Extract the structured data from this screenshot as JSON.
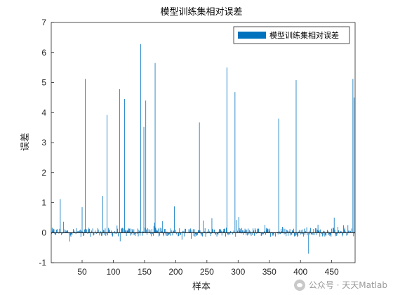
{
  "chart_data": {
    "type": "bar",
    "title": "模型训练集相对误差",
    "xlabel": "样本",
    "ylabel": "误差",
    "xlim": [
      1,
      487
    ],
    "ylim": [
      -1,
      7
    ],
    "xticks": [
      50,
      100,
      150,
      200,
      250,
      300,
      350,
      400,
      450
    ],
    "yticks": [
      -1,
      0,
      1,
      2,
      3,
      4,
      5,
      6,
      7
    ],
    "grid": false,
    "legend_position": "top-right",
    "series": [
      {
        "name": "模型训练集相对误差",
        "color": "#0072BD",
        "n": 487,
        "spikes": [
          {
            "x": 15,
            "y": 1.12
          },
          {
            "x": 50,
            "y": 0.85
          },
          {
            "x": 55,
            "y": 5.12
          },
          {
            "x": 83,
            "y": 1.22
          },
          {
            "x": 90,
            "y": 3.92
          },
          {
            "x": 110,
            "y": 4.78
          },
          {
            "x": 118,
            "y": 4.45
          },
          {
            "x": 144,
            "y": 6.28
          },
          {
            "x": 149,
            "y": 3.52
          },
          {
            "x": 152,
            "y": 4.4
          },
          {
            "x": 167,
            "y": 5.65
          },
          {
            "x": 198,
            "y": 0.88
          },
          {
            "x": 238,
            "y": 3.67
          },
          {
            "x": 282,
            "y": 5.5
          },
          {
            "x": 295,
            "y": 4.68
          },
          {
            "x": 365,
            "y": 3.8
          },
          {
            "x": 393,
            "y": 5.08
          },
          {
            "x": 413,
            "y": -0.7
          },
          {
            "x": 484,
            "y": 5.12
          },
          {
            "x": 486,
            "y": 4.5
          }
        ],
        "noise_amplitude": 0.3
      }
    ]
  },
  "watermark": {
    "text": "公众号 · 天天Matlab",
    "icon": "wechat-icon"
  }
}
